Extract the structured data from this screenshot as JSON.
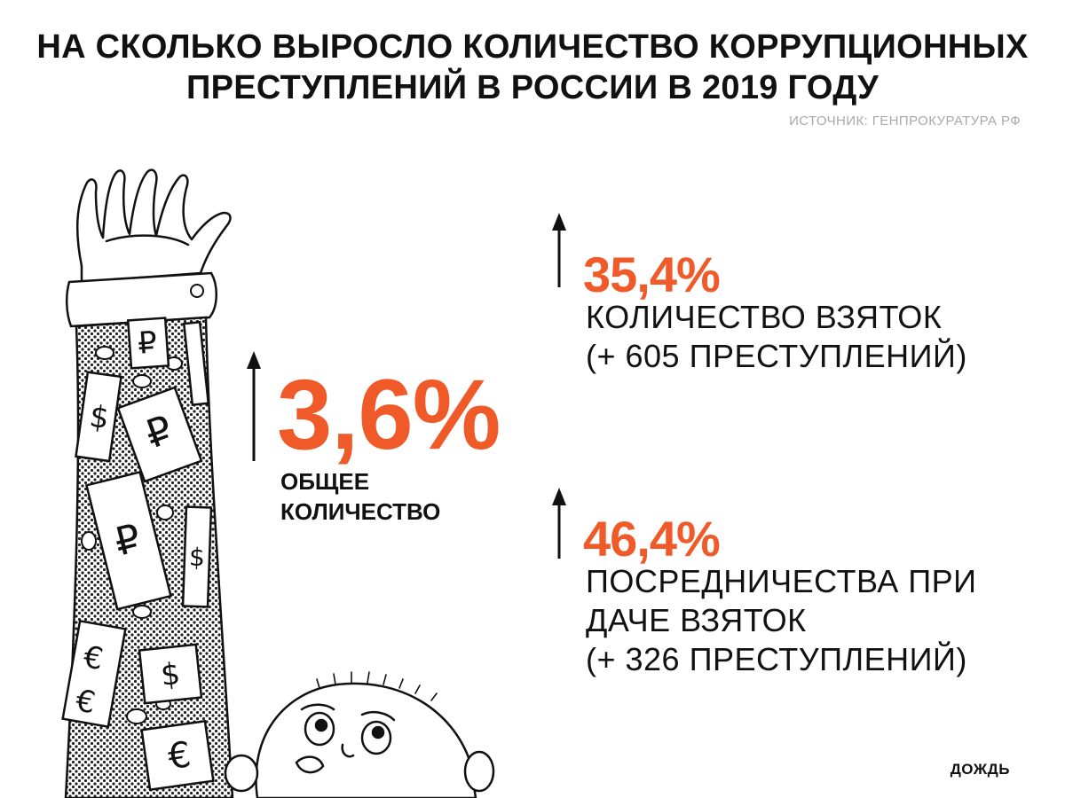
{
  "header": {
    "title_line1": "НА СКОЛЬКО ВЫРОСЛО КОЛИЧЕСТВО КОРРУПЦИОННЫХ",
    "title_line2": "ПРЕСТУПЛЕНИЙ В РОССИИ В 2019 ГОДУ",
    "source": "ИСТОЧНИК: ГЕНПРОКУРАТУРА РФ"
  },
  "total": {
    "value": "3,6%",
    "label_line1": "ОБЩЕЕ",
    "label_line2": "КОЛИЧЕСТВО"
  },
  "bribes": {
    "value": "35,4%",
    "label_line1": "КОЛИЧЕСТВО ВЗЯТОК",
    "label_line2": "(+ 605 ПРЕСТУПЛЕНИЙ)"
  },
  "mediation": {
    "value": "46,4%",
    "label_line1": "ПОСРЕДНИЧЕСТВА ПРИ",
    "label_line2": "ДАЧЕ ВЗЯТОК",
    "label_line3": "(+ 326 ПРЕСТУПЛЕНИЙ)"
  },
  "logo": "ДОЖДЬ",
  "illustration": {
    "note_symbols": [
      "₽",
      "₽",
      "$",
      "₽",
      "₽",
      "$",
      "$",
      "€",
      "€",
      "€"
    ]
  },
  "colors": {
    "accent": "#f05a28",
    "text": "#111111",
    "source": "#a9a9a9",
    "background": "#ffffff"
  },
  "icons": {
    "up_arrow": "up-arrow-icon",
    "illustration": "hand-with-money-illustration"
  }
}
